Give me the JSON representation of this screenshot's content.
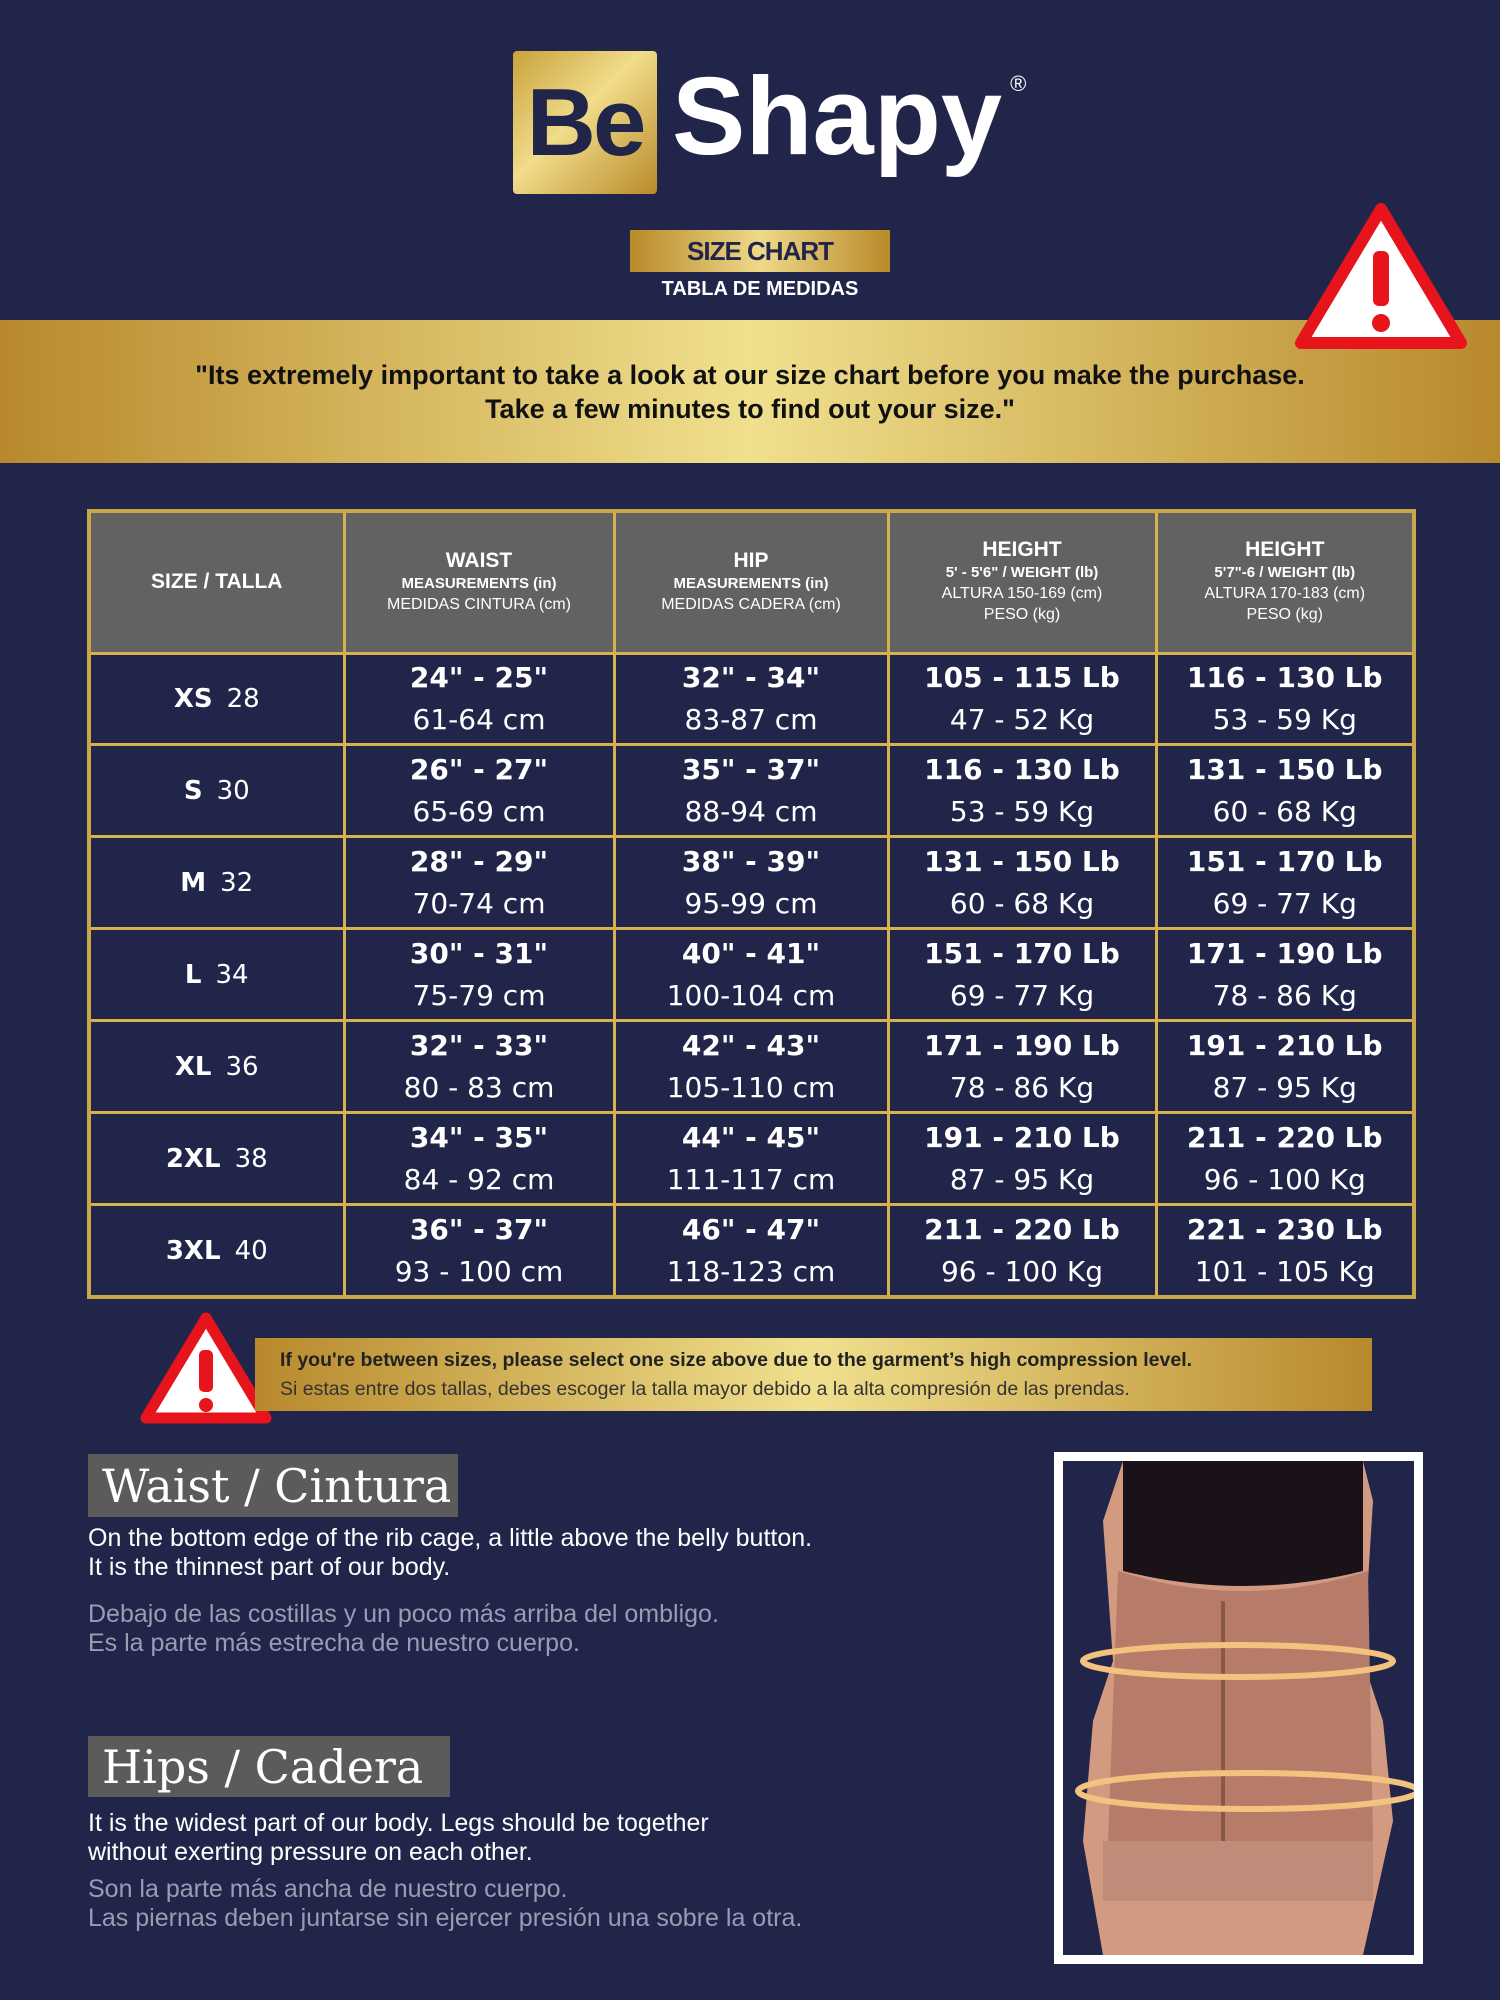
{
  "brand": {
    "logo_left": "Be",
    "logo_right": "Shapy",
    "registered": "®"
  },
  "title": {
    "main": "SIZE CHART",
    "sub": "TABLA DE MEDIDAS"
  },
  "banner": {
    "line1": "\"Its extremely important to take a look at our size chart before you make the purchase.",
    "line2": "Take a few minutes to find out your size.\""
  },
  "table": {
    "headers": [
      {
        "title": "SIZE / TALLA"
      },
      {
        "title": "WAIST",
        "l1": "MEASUREMENTS (in)",
        "l2": "MEDIDAS CINTURA (cm)"
      },
      {
        "title": "HIP",
        "l1": "MEASUREMENTS (in)",
        "l2": "MEDIDAS CADERA (cm)"
      },
      {
        "title": "HEIGHT",
        "l1": "5' - 5'6\" / WEIGHT (lb)",
        "l2": "ALTURA 150-169 (cm)",
        "l3": "PESO (kg)"
      },
      {
        "title": "HEIGHT",
        "l1": "5'7\"-6 / WEIGHT (lb)",
        "l2": "ALTURA 170-183 (cm)",
        "l3": "PESO (kg)"
      }
    ],
    "rows": [
      {
        "size": "XS",
        "num": "28",
        "waist_in": "24\" - 25\"",
        "waist_cm": "61-64 cm",
        "hip_in": "32\" - 34\"",
        "hip_cm": "83-87 cm",
        "w1_lb": "105 - 115 Lb",
        "w1_kg": "47 - 52 Kg",
        "w2_lb": "116 - 130 Lb",
        "w2_kg": "53 - 59 Kg"
      },
      {
        "size": "S",
        "num": "30",
        "waist_in": "26\" - 27\"",
        "waist_cm": "65-69 cm",
        "hip_in": "35\" - 37\"",
        "hip_cm": "88-94 cm",
        "w1_lb": "116 - 130 Lb",
        "w1_kg": "53 - 59 Kg",
        "w2_lb": "131 - 150 Lb",
        "w2_kg": "60 - 68 Kg"
      },
      {
        "size": "M",
        "num": "32",
        "waist_in": "28\" - 29\"",
        "waist_cm": "70-74 cm",
        "hip_in": "38\" - 39\"",
        "hip_cm": "95-99 cm",
        "w1_lb": "131 - 150 Lb",
        "w1_kg": "60 - 68 Kg",
        "w2_lb": "151 - 170 Lb",
        "w2_kg": "69 - 77 Kg"
      },
      {
        "size": "L",
        "num": "34",
        "waist_in": "30\" - 31\"",
        "waist_cm": "75-79 cm",
        "hip_in": "40\" - 41\"",
        "hip_cm": "100-104 cm",
        "w1_lb": "151 - 170 Lb",
        "w1_kg": "69 - 77 Kg",
        "w2_lb": "171 - 190 Lb",
        "w2_kg": "78 - 86 Kg"
      },
      {
        "size": "XL",
        "num": "36",
        "waist_in": "32\" - 33\"",
        "waist_cm": "80 - 83 cm",
        "hip_in": "42\" - 43\"",
        "hip_cm": "105-110 cm",
        "w1_lb": "171 - 190 Lb",
        "w1_kg": "78 - 86 Kg",
        "w2_lb": "191 - 210 Lb",
        "w2_kg": "87 - 95 Kg"
      },
      {
        "size": "2XL",
        "num": "38",
        "waist_in": "34\" - 35\"",
        "waist_cm": "84 - 92 cm",
        "hip_in": "44\" - 45\"",
        "hip_cm": "111-117 cm",
        "w1_lb": "191 - 210 Lb",
        "w1_kg": "87 - 95 Kg",
        "w2_lb": "211 - 220 Lb",
        "w2_kg": "96 - 100 Kg"
      },
      {
        "size": "3XL",
        "num": "40",
        "waist_in": "36\" - 37\"",
        "waist_cm": "93 - 100 cm",
        "hip_in": "46\" - 47\"",
        "hip_cm": "118-123 cm",
        "w1_lb": "211 - 220 Lb",
        "w1_kg": "96 - 100 Kg",
        "w2_lb": "221 - 230 Lb",
        "w2_kg": "101 - 105 Kg"
      }
    ]
  },
  "note": {
    "en": "If you're between sizes, please select one size above due to the garment’s high compression level.",
    "es": "Si estas entre dos tallas, debes escoger la talla mayor debido a la alta compresión de las prendas."
  },
  "waist": {
    "label": "Waist / Cintura",
    "en1": "On the bottom edge of the rib cage, a little above the belly button.",
    "en2": "It is the thinnest part of our body.",
    "es1": "Debajo de las costillas y un poco más arriba del ombligo.",
    "es2": "Es la parte más estrecha de nuestro cuerpo."
  },
  "hips": {
    "label": "Hips / Cadera",
    "en1": "It is the widest part of our body. Legs should be together",
    "en2": "without exerting pressure on each other.",
    "es1": "Son la parte más ancha de nuestro cuerpo.",
    "es2": "Las piernas deben juntarse sin ejercer presión una sobre la otra."
  },
  "colors": {
    "background": "#22254a",
    "gold": "#d6b14e",
    "header_gray": "#626262",
    "warning_red": "#e8141c"
  }
}
